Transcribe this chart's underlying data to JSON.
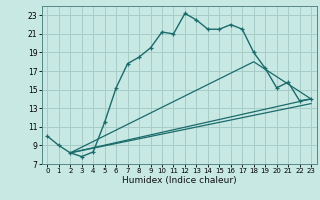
{
  "title": "",
  "xlabel": "Humidex (Indice chaleur)",
  "xlim": [
    -0.5,
    23.5
  ],
  "ylim": [
    7,
    24
  ],
  "xticks": [
    0,
    1,
    2,
    3,
    4,
    5,
    6,
    7,
    8,
    9,
    10,
    11,
    12,
    13,
    14,
    15,
    16,
    17,
    18,
    19,
    20,
    21,
    22,
    23
  ],
  "yticks": [
    7,
    9,
    11,
    13,
    15,
    17,
    19,
    21,
    23
  ],
  "bg_color": "#c8e8e4",
  "line_color": "#1a6b6b",
  "grid_color": "#a8ccc8",
  "line1_x": [
    0,
    1,
    2,
    3,
    4,
    5,
    6,
    7,
    8,
    9,
    10,
    11,
    12,
    13,
    14,
    15,
    16,
    17,
    18,
    19,
    20,
    21,
    22,
    23
  ],
  "line1_y": [
    10,
    9,
    8.2,
    7.8,
    8.3,
    11.5,
    15.2,
    17.8,
    18.5,
    19.5,
    21.2,
    21.0,
    23.2,
    22.5,
    21.5,
    21.5,
    22.0,
    21.5,
    19.0,
    17.3,
    15.2,
    15.8,
    13.8,
    14.0
  ],
  "line2_x": [
    2,
    23
  ],
  "line2_y": [
    8.2,
    14.0
  ],
  "line3_x": [
    2,
    18,
    23
  ],
  "line3_y": [
    8.2,
    18.0,
    14.0
  ],
  "line4_x": [
    2,
    23
  ],
  "line4_y": [
    8.2,
    13.5
  ]
}
